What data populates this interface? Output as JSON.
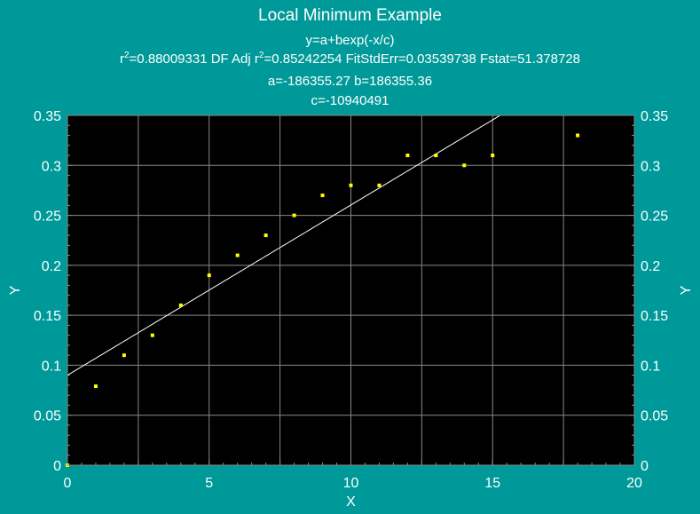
{
  "header": {
    "title": "Local Minimum Example",
    "equation": "y=a+bexp(-x/c)",
    "stats": {
      "r2_prefix": "r",
      "r2_sup": "2",
      "r2_value": "=0.88009331  DF Adj r",
      "adj_sup": "2",
      "rest": "=0.85242254  FitStdErr=0.03539738  Fstat=51.378728"
    },
    "params_ab": "a=-186355.27 b=186355.36",
    "params_c": "c=-10940491"
  },
  "colors": {
    "background": "#009999",
    "plot_area": "#000000",
    "grid": "#888888",
    "points": "#ffff00",
    "fit_line": "#ffffff",
    "text": "#ffffff"
  },
  "chart_data": {
    "type": "scatter",
    "title": "Local Minimum Example",
    "xlabel": "X",
    "ylabel": "Y",
    "xlim": [
      0,
      20
    ],
    "ylim": [
      0,
      0.35
    ],
    "x_ticks": [
      "0",
      "5",
      "10",
      "15",
      "20"
    ],
    "y_ticks": [
      "0",
      "0.05",
      "0.1",
      "0.15",
      "0.2",
      "0.25",
      "0.3",
      "0.35"
    ],
    "grid": true,
    "right_axis_mirrored": true,
    "series": [
      {
        "x": [
          0,
          1,
          2,
          3,
          4,
          5,
          6,
          7,
          8,
          9,
          10,
          11,
          12,
          13,
          14,
          15,
          18
        ],
        "y": [
          0.0,
          0.079,
          0.11,
          0.13,
          0.16,
          0.19,
          0.21,
          0.23,
          0.25,
          0.27,
          0.28,
          0.28,
          0.31,
          0.31,
          0.3,
          0.31,
          0.33
        ]
      }
    ],
    "fit": {
      "equation": "y=a+bexp(-x/c)",
      "a": -186355.27,
      "b": 186355.36,
      "c": -10940491
    }
  }
}
